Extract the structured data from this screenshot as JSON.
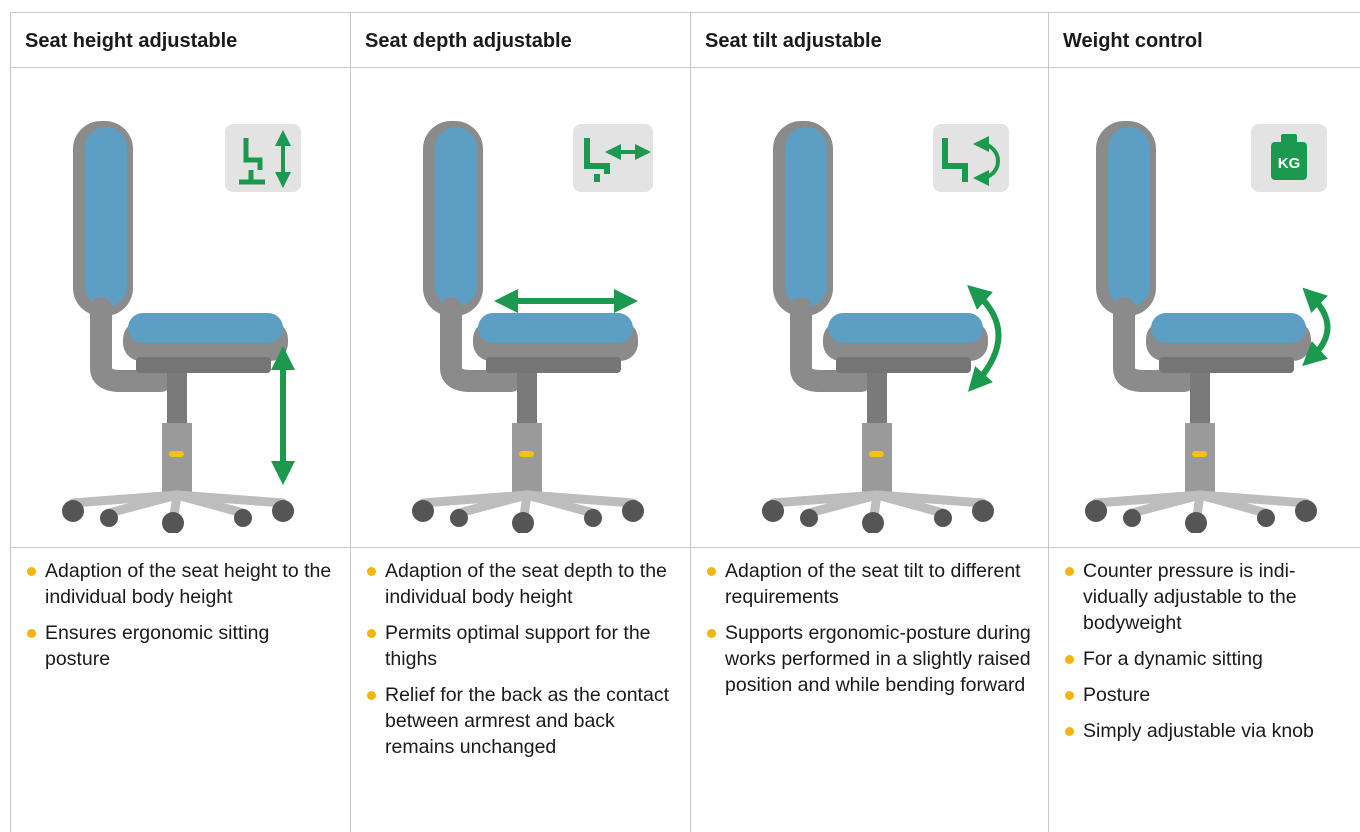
{
  "columns": [
    {
      "title": "Seat height adjustable",
      "bullets": [
        "Adaption of the seat height to the individual body height",
        "Ensures ergonomic sitting posture"
      ]
    },
    {
      "title": "Seat depth adjustable",
      "bullets": [
        "Adaption of the seat depth to the individual body height",
        "Permits optimal support for the thighs",
        "Relief for the back as the contact between armrest and back remains unchanged"
      ]
    },
    {
      "title": "Seat tilt adjustable",
      "bullets": [
        "Adaption of the seat tilt to different requirements",
        "Supports ergonomic-posture during works performed in a slightly raised position and while bending forward"
      ]
    },
    {
      "title": "Weight control",
      "bullets": [
        "Counter pressure is indi­vidually adjustable to the bodyweight",
        "For a dynamic sitting",
        "Posture",
        "Simply adjustable via knob"
      ],
      "icon_text": "KG"
    }
  ]
}
